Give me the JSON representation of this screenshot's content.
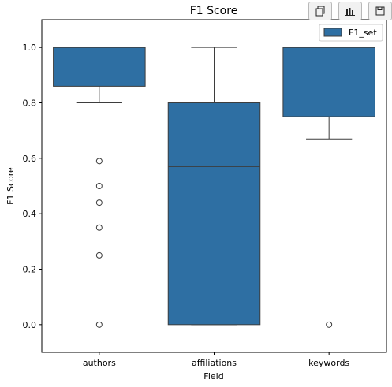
{
  "toolbar": {
    "icons": [
      "copy-icon",
      "bar-chart-icon",
      "save-icon"
    ]
  },
  "chart_data": {
    "type": "box",
    "title": "F1 Score",
    "xlabel": "Field",
    "ylabel": "F1 Score",
    "ylim": [
      -0.1,
      1.1
    ],
    "yticks": [
      0.0,
      0.2,
      0.4,
      0.6,
      0.8,
      1.0
    ],
    "ytick_labels": [
      "0.0",
      "0.2",
      "0.4",
      "0.6",
      "0.8",
      "1.0"
    ],
    "categories": [
      "authors",
      "affiliations",
      "keywords"
    ],
    "legend": {
      "position": "top-right",
      "entries": [
        "F1_set"
      ]
    },
    "box_color": "#2e6fa3",
    "edge_color": "#3d3d3d",
    "series": [
      {
        "name": "F1_set",
        "boxes": [
          {
            "category": "authors",
            "whisker_low": 0.8,
            "q1": 0.86,
            "median": 1.0,
            "q3": 1.0,
            "whisker_high": 1.0,
            "outliers": [
              0.59,
              0.5,
              0.44,
              0.35,
              0.25,
              0.0
            ]
          },
          {
            "category": "affiliations",
            "whisker_low": 0.0,
            "q1": 0.0,
            "median": 0.57,
            "q3": 0.8,
            "whisker_high": 1.0,
            "outliers": []
          },
          {
            "category": "keywords",
            "whisker_low": 0.67,
            "q1": 0.75,
            "median": 1.0,
            "q3": 1.0,
            "whisker_high": 1.0,
            "outliers": [
              0.0
            ]
          }
        ]
      }
    ]
  }
}
